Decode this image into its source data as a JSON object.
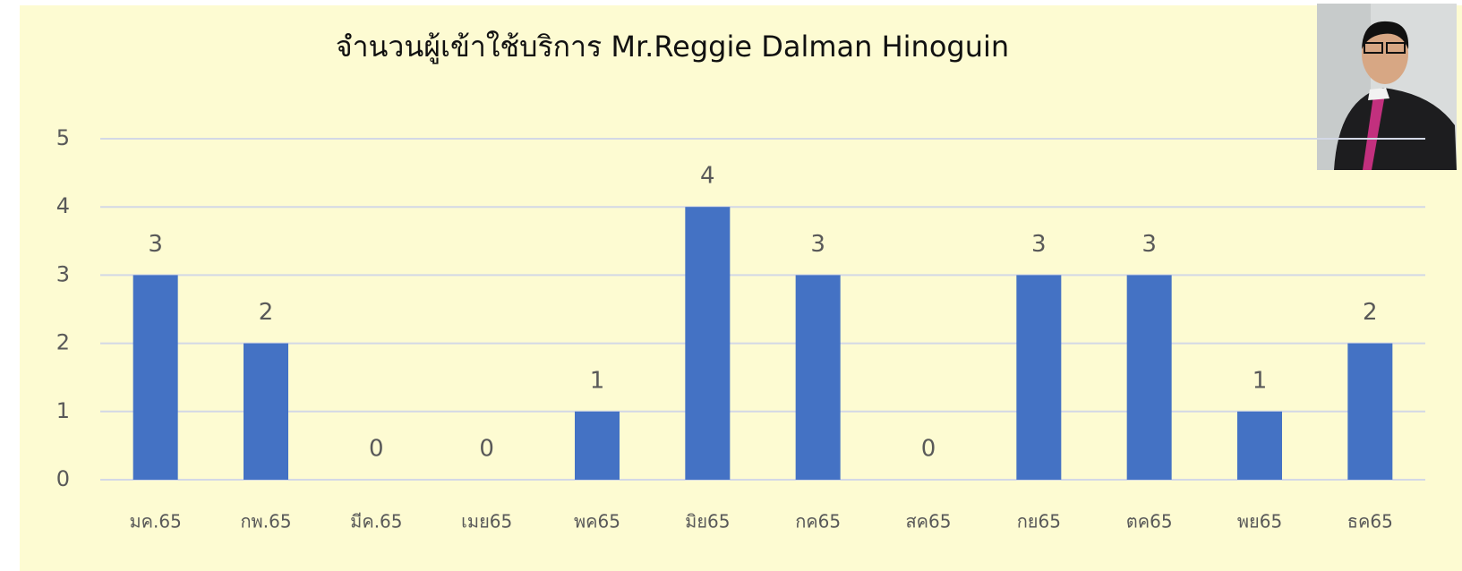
{
  "chart_data": {
    "type": "bar",
    "title": "จำนวนผู้เข้าใช้บริการ  Mr.Reggie Dalman  Hinoguin",
    "categories": [
      "มค.65",
      "กพ.65",
      "มีค.65",
      "เมย65",
      "พค65",
      "มิย65",
      "กค65",
      "สค65",
      "กย65",
      "ตค65",
      "พย65",
      "ธค65"
    ],
    "values": [
      3,
      2,
      0,
      0,
      1,
      4,
      3,
      0,
      3,
      3,
      1,
      2
    ],
    "color": "#4472c4",
    "ylim": [
      0,
      5
    ],
    "yticks": [
      0,
      1,
      2,
      3,
      4,
      5
    ],
    "grid": true
  }
}
